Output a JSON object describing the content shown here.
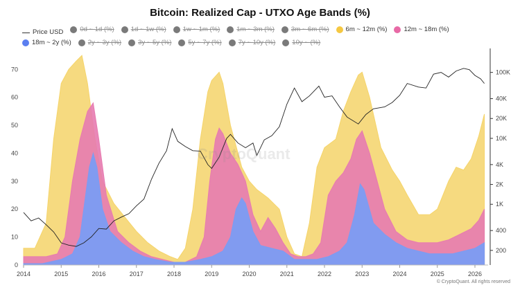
{
  "chart_data": {
    "type": "area",
    "title": "Bitcoin: Realized Cap - UTXO Age Bands (%)",
    "x_ticks": [
      "2014",
      "2015",
      "2016",
      "2017",
      "2018",
      "2019",
      "2020",
      "2021",
      "2022",
      "2023",
      "2024",
      "2025",
      "2026"
    ],
    "y_left_ticks": [
      "0",
      "10",
      "20",
      "30",
      "40",
      "50",
      "60",
      "70"
    ],
    "y_left_range": [
      0,
      77
    ],
    "y_right_ticks": [
      "100K",
      "40K",
      "20K",
      "10K",
      "4K",
      "2K",
      "1K",
      "400",
      "200"
    ],
    "y_right_scale": "log",
    "y_right_range": [
      120,
      220000
    ],
    "legend": [
      {
        "label": "Price USD",
        "color": "#333333",
        "style": "line",
        "active": true
      },
      {
        "label": "0d ~ 1d (%)",
        "color": "#7a7a7a",
        "active": false
      },
      {
        "label": "1d ~ 1w (%)",
        "color": "#7a7a7a",
        "active": false
      },
      {
        "label": "1w ~ 1m (%)",
        "color": "#7a7a7a",
        "active": false
      },
      {
        "label": "1m ~ 3m (%)",
        "color": "#7a7a7a",
        "active": false
      },
      {
        "label": "3m ~ 6m (%)",
        "color": "#7a7a7a",
        "active": false
      },
      {
        "label": "6m ~ 12m (%)",
        "color": "#f5c842",
        "active": true
      },
      {
        "label": "12m ~ 18m (%)",
        "color": "#e86aa6",
        "active": true
      },
      {
        "label": "18m ~ 2y (%)",
        "color": "#5b7ff0",
        "active": true
      },
      {
        "label": "2y ~ 3y (%)",
        "color": "#7a7a7a",
        "active": false
      },
      {
        "label": "3y ~ 5y (%)",
        "color": "#7a7a7a",
        "active": false
      },
      {
        "label": "5y ~ 7y (%)",
        "color": "#7a7a7a",
        "active": false
      },
      {
        "label": "7y ~ 10y (%)",
        "color": "#7a7a7a",
        "active": false
      },
      {
        "label": "10y ~ (%)",
        "color": "#7a7a7a",
        "active": false
      }
    ],
    "series": [
      {
        "name": "6m ~ 12m (%)",
        "color": "#f5d46a",
        "fill_opacity": 0.85,
        "points": [
          [
            2014.0,
            6
          ],
          [
            2014.3,
            6
          ],
          [
            2014.6,
            15
          ],
          [
            2014.8,
            45
          ],
          [
            2015.0,
            65
          ],
          [
            2015.2,
            70
          ],
          [
            2015.4,
            73
          ],
          [
            2015.55,
            75
          ],
          [
            2015.7,
            65
          ],
          [
            2015.9,
            45
          ],
          [
            2016.1,
            30
          ],
          [
            2016.4,
            22
          ],
          [
            2016.7,
            17
          ],
          [
            2017.0,
            12
          ],
          [
            2017.3,
            8
          ],
          [
            2017.6,
            5
          ],
          [
            2017.9,
            3
          ],
          [
            2018.1,
            2
          ],
          [
            2018.3,
            6
          ],
          [
            2018.5,
            20
          ],
          [
            2018.7,
            45
          ],
          [
            2018.9,
            62
          ],
          [
            2019.0,
            66
          ],
          [
            2019.2,
            69
          ],
          [
            2019.3,
            65
          ],
          [
            2019.5,
            50
          ],
          [
            2019.8,
            35
          ],
          [
            2020.0,
            30
          ],
          [
            2020.2,
            27
          ],
          [
            2020.5,
            24
          ],
          [
            2020.8,
            20
          ],
          [
            2021.0,
            10
          ],
          [
            2021.2,
            4
          ],
          [
            2021.4,
            3
          ],
          [
            2021.6,
            15
          ],
          [
            2021.8,
            35
          ],
          [
            2022.0,
            42
          ],
          [
            2022.3,
            45
          ],
          [
            2022.5,
            55
          ],
          [
            2022.7,
            62
          ],
          [
            2022.9,
            68
          ],
          [
            2023.0,
            69
          ],
          [
            2023.2,
            60
          ],
          [
            2023.5,
            42
          ],
          [
            2023.8,
            34
          ],
          [
            2024.0,
            30
          ],
          [
            2024.2,
            25
          ],
          [
            2024.5,
            18
          ],
          [
            2024.8,
            18
          ],
          [
            2025.0,
            20
          ],
          [
            2025.3,
            30
          ],
          [
            2025.5,
            35
          ],
          [
            2025.7,
            34
          ],
          [
            2025.9,
            38
          ],
          [
            2026.1,
            46
          ],
          [
            2026.25,
            54
          ]
        ]
      },
      {
        "name": "12m ~ 18m (%)",
        "color": "#e77bb0",
        "fill_opacity": 0.9,
        "points": [
          [
            2014.0,
            3
          ],
          [
            2014.3,
            3
          ],
          [
            2014.6,
            3
          ],
          [
            2014.9,
            4
          ],
          [
            2015.1,
            10
          ],
          [
            2015.3,
            30
          ],
          [
            2015.5,
            45
          ],
          [
            2015.7,
            55
          ],
          [
            2015.85,
            58
          ],
          [
            2016.0,
            45
          ],
          [
            2016.2,
            25
          ],
          [
            2016.5,
            12
          ],
          [
            2016.8,
            8
          ],
          [
            2017.1,
            5
          ],
          [
            2017.4,
            3
          ],
          [
            2017.7,
            2
          ],
          [
            2018.0,
            1
          ],
          [
            2018.3,
            1
          ],
          [
            2018.6,
            3
          ],
          [
            2018.8,
            10
          ],
          [
            2018.95,
            30
          ],
          [
            2019.1,
            45
          ],
          [
            2019.2,
            49
          ],
          [
            2019.3,
            47
          ],
          [
            2019.5,
            40
          ],
          [
            2019.7,
            36
          ],
          [
            2019.9,
            30
          ],
          [
            2020.1,
            18
          ],
          [
            2020.3,
            12
          ],
          [
            2020.5,
            17
          ],
          [
            2020.7,
            13
          ],
          [
            2020.9,
            8
          ],
          [
            2021.1,
            4
          ],
          [
            2021.3,
            3
          ],
          [
            2021.5,
            3
          ],
          [
            2021.7,
            4
          ],
          [
            2021.9,
            8
          ],
          [
            2022.1,
            25
          ],
          [
            2022.3,
            30
          ],
          [
            2022.5,
            33
          ],
          [
            2022.7,
            38
          ],
          [
            2022.85,
            45
          ],
          [
            2023.0,
            48
          ],
          [
            2023.2,
            40
          ],
          [
            2023.4,
            30
          ],
          [
            2023.6,
            20
          ],
          [
            2023.9,
            12
          ],
          [
            2024.2,
            9
          ],
          [
            2024.5,
            8
          ],
          [
            2024.8,
            8
          ],
          [
            2025.0,
            8
          ],
          [
            2025.3,
            9
          ],
          [
            2025.6,
            11
          ],
          [
            2025.9,
            13
          ],
          [
            2026.1,
            16
          ],
          [
            2026.25,
            20
          ]
        ]
      },
      {
        "name": "18m ~ 2y (%)",
        "color": "#7b9cf3",
        "fill_opacity": 0.95,
        "points": [
          [
            2014.0,
            0.5
          ],
          [
            2014.5,
            0.5
          ],
          [
            2015.0,
            2
          ],
          [
            2015.3,
            4
          ],
          [
            2015.5,
            10
          ],
          [
            2015.65,
            25
          ],
          [
            2015.75,
            35
          ],
          [
            2015.85,
            40
          ],
          [
            2015.95,
            35
          ],
          [
            2016.1,
            20
          ],
          [
            2016.3,
            12
          ],
          [
            2016.6,
            8
          ],
          [
            2016.9,
            5
          ],
          [
            2017.2,
            3
          ],
          [
            2017.5,
            2
          ],
          [
            2017.9,
            1
          ],
          [
            2018.3,
            1
          ],
          [
            2018.7,
            2
          ],
          [
            2019.0,
            3
          ],
          [
            2019.3,
            5
          ],
          [
            2019.5,
            10
          ],
          [
            2019.65,
            20
          ],
          [
            2019.8,
            24
          ],
          [
            2019.9,
            22
          ],
          [
            2020.1,
            12
          ],
          [
            2020.3,
            7
          ],
          [
            2020.6,
            6
          ],
          [
            2020.9,
            5
          ],
          [
            2021.2,
            2
          ],
          [
            2021.5,
            2
          ],
          [
            2021.8,
            2
          ],
          [
            2022.1,
            3
          ],
          [
            2022.4,
            5
          ],
          [
            2022.6,
            8
          ],
          [
            2022.8,
            18
          ],
          [
            2022.95,
            29
          ],
          [
            2023.05,
            27
          ],
          [
            2023.3,
            15
          ],
          [
            2023.6,
            11
          ],
          [
            2023.9,
            8
          ],
          [
            2024.2,
            6
          ],
          [
            2024.5,
            5
          ],
          [
            2024.8,
            4
          ],
          [
            2025.1,
            4
          ],
          [
            2025.4,
            4
          ],
          [
            2025.7,
            5
          ],
          [
            2026.0,
            6
          ],
          [
            2026.25,
            8
          ]
        ]
      }
    ],
    "price_line": {
      "name": "Price USD",
      "color": "#222222",
      "points": [
        [
          2014.0,
          750
        ],
        [
          2014.2,
          560
        ],
        [
          2014.4,
          620
        ],
        [
          2014.6,
          490
        ],
        [
          2014.8,
          380
        ],
        [
          2015.0,
          260
        ],
        [
          2015.2,
          240
        ],
        [
          2015.4,
          230
        ],
        [
          2015.6,
          260
        ],
        [
          2015.8,
          320
        ],
        [
          2016.0,
          430
        ],
        [
          2016.2,
          420
        ],
        [
          2016.4,
          560
        ],
        [
          2016.6,
          640
        ],
        [
          2016.8,
          720
        ],
        [
          2017.0,
          950
        ],
        [
          2017.2,
          1200
        ],
        [
          2017.4,
          2400
        ],
        [
          2017.6,
          4200
        ],
        [
          2017.8,
          6500
        ],
        [
          2017.95,
          14000
        ],
        [
          2018.1,
          9000
        ],
        [
          2018.3,
          7500
        ],
        [
          2018.5,
          6500
        ],
        [
          2018.7,
          6400
        ],
        [
          2018.9,
          4000
        ],
        [
          2019.0,
          3500
        ],
        [
          2019.2,
          5200
        ],
        [
          2019.4,
          10000
        ],
        [
          2019.5,
          11500
        ],
        [
          2019.7,
          8500
        ],
        [
          2019.9,
          7200
        ],
        [
          2020.1,
          8500
        ],
        [
          2020.2,
          5500
        ],
        [
          2020.4,
          9500
        ],
        [
          2020.6,
          11000
        ],
        [
          2020.8,
          15000
        ],
        [
          2021.0,
          33000
        ],
        [
          2021.2,
          58000
        ],
        [
          2021.4,
          36000
        ],
        [
          2021.6,
          44000
        ],
        [
          2021.85,
          62000
        ],
        [
          2022.0,
          42000
        ],
        [
          2022.2,
          44000
        ],
        [
          2022.4,
          30000
        ],
        [
          2022.6,
          21000
        ],
        [
          2022.9,
          16500
        ],
        [
          2023.1,
          23000
        ],
        [
          2023.3,
          28000
        ],
        [
          2023.6,
          30000
        ],
        [
          2023.8,
          35000
        ],
        [
          2024.0,
          45000
        ],
        [
          2024.2,
          68000
        ],
        [
          2024.5,
          60000
        ],
        [
          2024.7,
          58000
        ],
        [
          2024.9,
          94000
        ],
        [
          2025.1,
          100000
        ],
        [
          2025.3,
          85000
        ],
        [
          2025.5,
          105000
        ],
        [
          2025.7,
          115000
        ],
        [
          2025.85,
          110000
        ],
        [
          2026.0,
          90000
        ],
        [
          2026.15,
          80000
        ],
        [
          2026.25,
          68000
        ]
      ]
    }
  },
  "credit": "© CryptoQuant. All rights reserved",
  "watermark": "CryptoQuant"
}
